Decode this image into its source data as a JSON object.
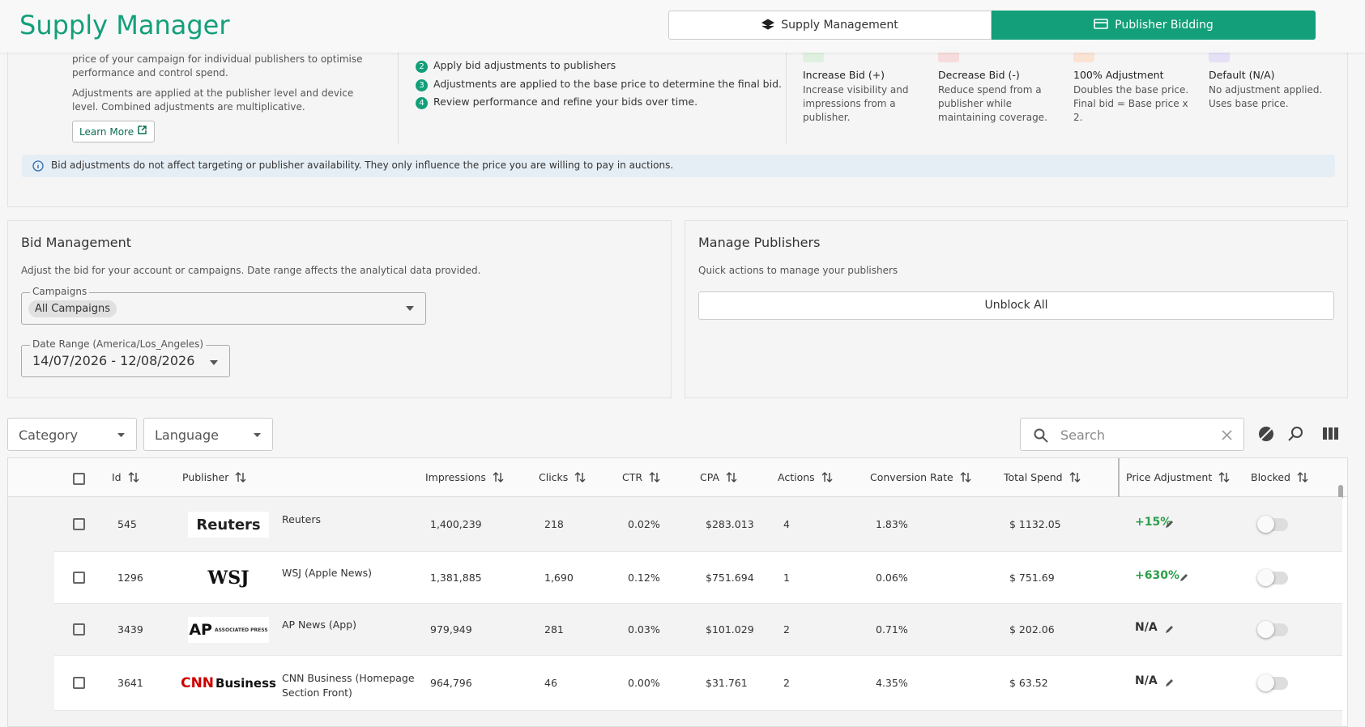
{
  "header": {
    "title": "Supply Manager",
    "tabs": [
      "Supply Management",
      "Publisher Bidding"
    ]
  },
  "intro": {
    "text": "price of your campaign for individual publishers to optimise performance and control spend.",
    "note": "Adjustments are applied at the publisher level and device level. Combined adjustments are multiplicative.",
    "link": "Learn More"
  },
  "steps": [
    {
      "number": "2",
      "text": "Apply bid adjustments to publishers"
    },
    {
      "number": "3",
      "text": "Adjustments are applied to the base price to determine the final bid."
    },
    {
      "number": "4",
      "text": "Review performance and refine your bids over time."
    }
  ],
  "adjustment_types": [
    {
      "title": "Increase Bid (+)",
      "text": "Increase visibility and impressions from a publisher."
    },
    {
      "title": "Decrease Bid (-)",
      "text": "Reduce spend from a publisher while maintaining coverage."
    },
    {
      "title": "100% Adjustment",
      "text": "Doubles the base price. Final bid = Base price x 2."
    },
    {
      "title": "Default (N/A)",
      "text": "No adjustment applied. Uses base price."
    }
  ],
  "info": "Bid adjustments do not affect targeting or publisher availability. They only influence the price you are willing to pay in auctions.",
  "bid_management": {
    "title": "Bid Management",
    "description": "Adjust the bid for your account or campaigns. Date range affects the analytical data provided.",
    "campaigns_label": "Campaigns",
    "campaigns_value": "All Campaigns",
    "date_label": "Date Range (America/Los_Angeles)",
    "date_value": "14/07/2026 - 12/08/2026"
  },
  "manage_publishers": {
    "title": "Manage Publishers",
    "description": "Quick actions to manage your publishers",
    "button": "Unblock All"
  },
  "filters": {
    "category": "Category",
    "language": "Language",
    "search": "Search"
  },
  "table": {
    "columns": [
      "Id",
      "Publisher",
      "Impressions",
      "Clicks",
      "CTR",
      "CPA",
      "Actions",
      "Conversion Rate",
      "Total Spend",
      "Price Adjustment",
      "Blocked"
    ],
    "rows": [
      {
        "logo": [
          "Reuters"
        ],
        "cells": [
          "545",
          "Reuters",
          "1,400,239",
          "218",
          "0.02%",
          "$283.013",
          "4",
          "1.83%",
          "$ 1132.05",
          "+15%"
        ]
      },
      {
        "logo": [
          "WSJ"
        ],
        "cells": [
          "1296",
          "WSJ (Apple News)",
          "1,381,885",
          "1,690",
          "0.12%",
          "$751.694",
          "1",
          "0.06%",
          "$ 751.69",
          "+630%"
        ]
      },
      {
        "logo": [
          "AP",
          "ASSOCIATED PRESS"
        ],
        "cells": [
          "3439",
          "AP News (App)",
          "979,949",
          "281",
          "0.03%",
          "$101.029",
          "2",
          "0.71%",
          "$ 202.06",
          "N/A"
        ]
      },
      {
        "logo": [
          "CNN",
          "Business"
        ],
        "cells": [
          "3641",
          "CNN Business (Homepage Section Front)",
          "964,796",
          "46",
          "0.00%",
          "$31.761",
          "2",
          "4.35%",
          "$ 63.52",
          "N/A"
        ]
      }
    ]
  }
}
